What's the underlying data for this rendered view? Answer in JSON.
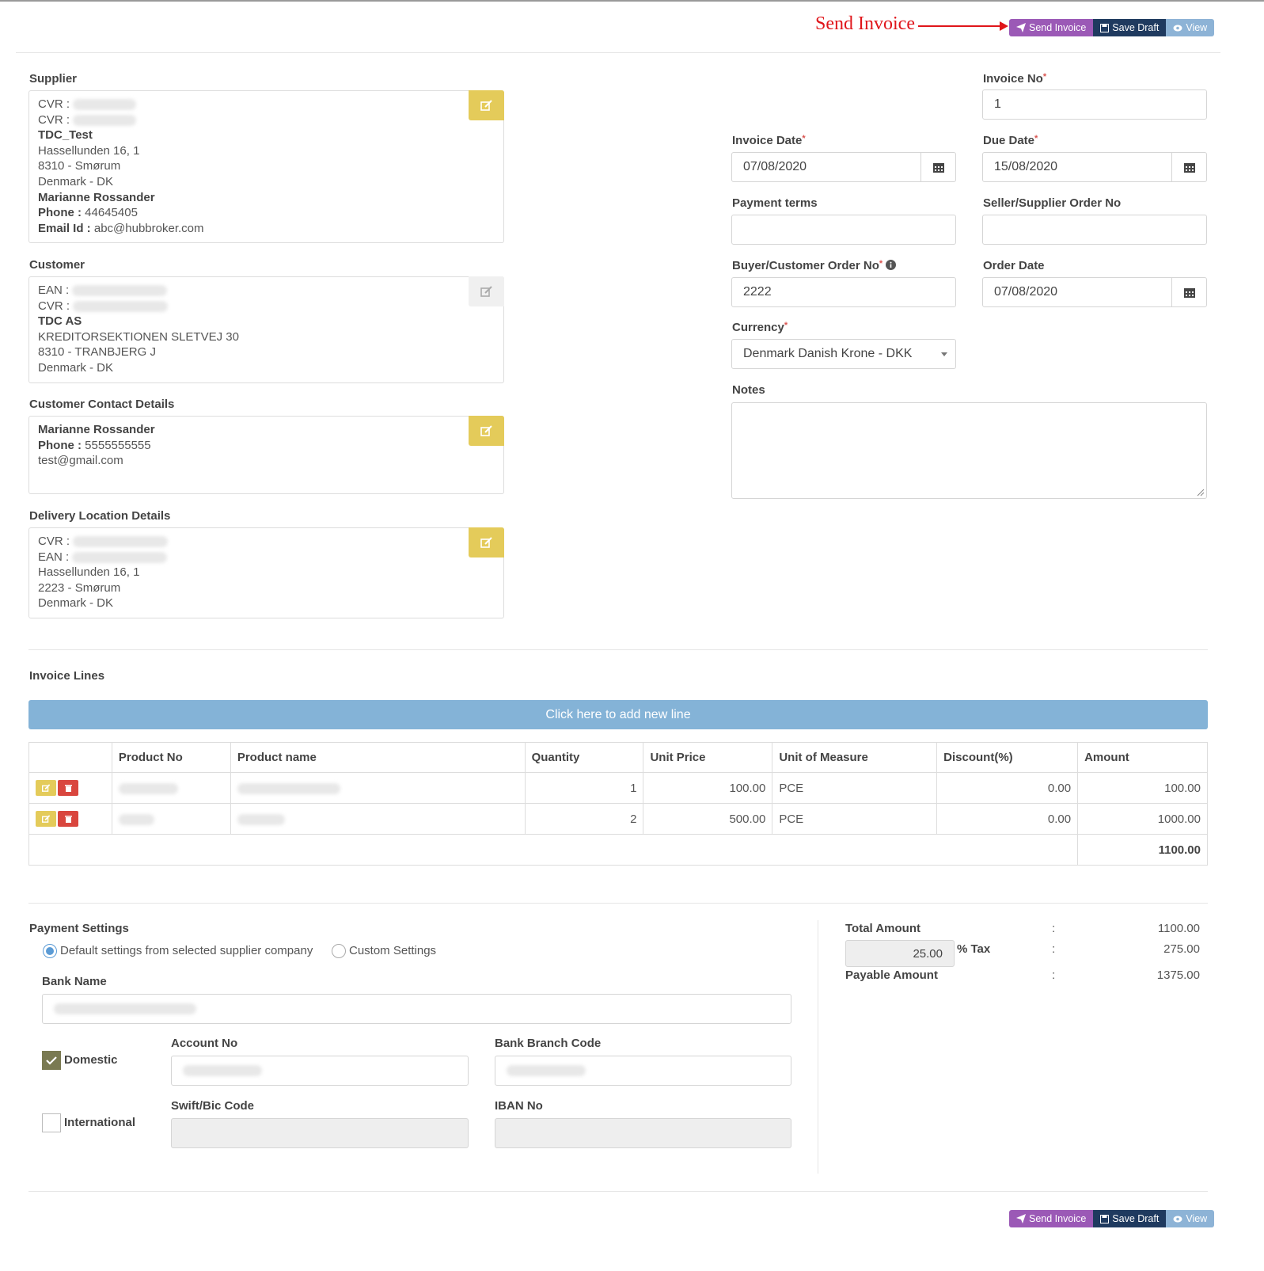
{
  "annotation": {
    "text": "Send Invoice"
  },
  "actions": {
    "send": "Send Invoice",
    "save": "Save Draft",
    "view": "View"
  },
  "supplier": {
    "label": "Supplier",
    "cvr1": "CVR :",
    "cvr2": "CVR :",
    "name": "TDC_Test",
    "address": "Hassellunden 16, 1",
    "city": "8310 - Smørum",
    "country": "Denmark - DK",
    "contact": "Marianne Rossander",
    "phone_label": "Phone :",
    "phone": "44645405",
    "email_label": "Email Id :",
    "email": "abc@hubbroker.com"
  },
  "customer": {
    "label": "Customer",
    "ean": "EAN :",
    "cvr": "CVR :",
    "name": "TDC AS",
    "address": "KREDITORSEKTIONEN SLETVEJ 30",
    "city": "8310 - TRANBJERG J",
    "country": "Denmark - DK"
  },
  "customer_contact": {
    "label": "Customer Contact Details",
    "name": "Marianne Rossander",
    "phone_label": "Phone :",
    "phone": "5555555555",
    "email": "test@gmail.com"
  },
  "delivery": {
    "label": "Delivery Location Details",
    "cvr": "CVR :",
    "ean": "EAN :",
    "address": "Hassellunden 16, 1",
    "city": "2223 - Smørum",
    "country": "Denmark - DK"
  },
  "form": {
    "invoice_no_label": "Invoice No",
    "invoice_no": "1",
    "invoice_date_label": "Invoice Date",
    "invoice_date": "07/08/2020",
    "due_date_label": "Due Date",
    "due_date": "15/08/2020",
    "payment_terms_label": "Payment terms",
    "payment_terms": "",
    "seller_order_label": "Seller/Supplier Order No",
    "seller_order": "",
    "buyer_order_label": "Buyer/Customer Order No",
    "buyer_order": "2222",
    "order_date_label": "Order Date",
    "order_date": "07/08/2020",
    "currency_label": "Currency",
    "currency": "Denmark Danish Krone - DKK",
    "notes_label": "Notes",
    "notes": "",
    "required_mark": "*"
  },
  "invoice_lines": {
    "title": "Invoice Lines",
    "add_line": "Click here to add new line",
    "headers": [
      "Product No",
      "Product name",
      "Quantity",
      "Unit Price",
      "Unit of Measure",
      "Discount(%)",
      "Amount"
    ],
    "rows": [
      {
        "quantity": "1",
        "unit_price": "100.00",
        "uom": "PCE",
        "discount": "0.00",
        "amount": "100.00"
      },
      {
        "quantity": "2",
        "unit_price": "500.00",
        "uom": "PCE",
        "discount": "0.00",
        "amount": "1000.00"
      }
    ],
    "total": "1100.00"
  },
  "payment": {
    "title": "Payment Settings",
    "opt_default": "Default settings from selected supplier company",
    "opt_custom": "Custom Settings",
    "bank_name_label": "Bank Name",
    "domestic": "Domestic",
    "international": "International",
    "account_no_label": "Account No",
    "branch_code_label": "Bank Branch Code",
    "swift_label": "Swift/Bic Code",
    "iban_label": "IBAN No"
  },
  "totals": {
    "total_label": "Total Amount",
    "total": "1100.00",
    "tax_rate": "25.00",
    "tax_label": "% Tax",
    "tax": "275.00",
    "payable_label": "Payable Amount",
    "payable": "1375.00",
    "sep": ":"
  }
}
